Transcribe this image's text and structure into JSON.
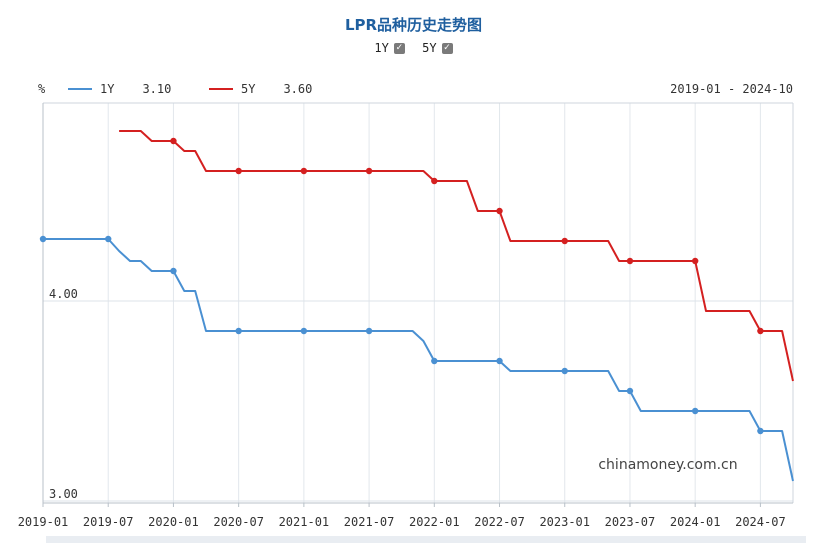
{
  "title": "LPR品种历史走势图",
  "toggles": [
    {
      "label": "1Y",
      "checked": true
    },
    {
      "label": "5Y",
      "checked": true
    }
  ],
  "unit": "%",
  "date_range": "2019-01 - 2024-10",
  "watermark": "chinamoney.com.cn",
  "legend": [
    {
      "name": "1Y",
      "value": "3.10",
      "color": "#4a90d2"
    },
    {
      "name": "5Y",
      "value": "3.60",
      "color": "#d42020"
    }
  ],
  "chart_data": {
    "type": "line",
    "ylim": [
      2.99,
      4.99
    ],
    "y_ticks": [
      {
        "value": 4.0,
        "label": "4.00"
      },
      {
        "value": 3.0,
        "label": "3.00"
      }
    ],
    "x_ticks": [
      "2019-01",
      "2019-07",
      "2020-01",
      "2020-07",
      "2021-01",
      "2021-07",
      "2022-01",
      "2022-07",
      "2023-01",
      "2023-07",
      "2024-01",
      "2024-07"
    ],
    "xlim": [
      "2019-01",
      "2024-10"
    ],
    "grid": true,
    "legend_position": "top-left",
    "series": [
      {
        "name": "1Y",
        "color": "#4a90d2",
        "points": [
          [
            "2019-01",
            4.31
          ],
          [
            "2019-07",
            4.31
          ],
          [
            "2019-08",
            4.25
          ],
          [
            "2019-09",
            4.2
          ],
          [
            "2019-10",
            4.2
          ],
          [
            "2019-11",
            4.15
          ],
          [
            "2020-01",
            4.15
          ],
          [
            "2020-02",
            4.05
          ],
          [
            "2020-03",
            4.05
          ],
          [
            "2020-04",
            3.85
          ],
          [
            "2020-07",
            3.85
          ],
          [
            "2021-01",
            3.85
          ],
          [
            "2021-07",
            3.85
          ],
          [
            "2021-11",
            3.85
          ],
          [
            "2021-12",
            3.8
          ],
          [
            "2022-01",
            3.7
          ],
          [
            "2022-07",
            3.7
          ],
          [
            "2022-08",
            3.65
          ],
          [
            "2023-01",
            3.65
          ],
          [
            "2023-05",
            3.65
          ],
          [
            "2023-06",
            3.55
          ],
          [
            "2023-07",
            3.55
          ],
          [
            "2023-08",
            3.45
          ],
          [
            "2024-01",
            3.45
          ],
          [
            "2024-06",
            3.45
          ],
          [
            "2024-07",
            3.35
          ],
          [
            "2024-09",
            3.35
          ],
          [
            "2024-10",
            3.1
          ]
        ],
        "markers": [
          "2019-01",
          "2019-07",
          "2020-01",
          "2020-07",
          "2021-01",
          "2021-07",
          "2022-01",
          "2022-07",
          "2023-01",
          "2023-07",
          "2024-01",
          "2024-07"
        ]
      },
      {
        "name": "5Y",
        "color": "#d42020",
        "points": [
          [
            "2019-08",
            4.85
          ],
          [
            "2019-10",
            4.85
          ],
          [
            "2019-11",
            4.8
          ],
          [
            "2020-01",
            4.8
          ],
          [
            "2020-02",
            4.75
          ],
          [
            "2020-03",
            4.75
          ],
          [
            "2020-04",
            4.65
          ],
          [
            "2020-07",
            4.65
          ],
          [
            "2021-01",
            4.65
          ],
          [
            "2021-07",
            4.65
          ],
          [
            "2021-12",
            4.65
          ],
          [
            "2022-01",
            4.6
          ],
          [
            "2022-04",
            4.6
          ],
          [
            "2022-05",
            4.45
          ],
          [
            "2022-07",
            4.45
          ],
          [
            "2022-08",
            4.3
          ],
          [
            "2023-01",
            4.3
          ],
          [
            "2023-05",
            4.3
          ],
          [
            "2023-06",
            4.2
          ],
          [
            "2023-07",
            4.2
          ],
          [
            "2024-01",
            4.2
          ],
          [
            "2024-02",
            3.95
          ],
          [
            "2024-06",
            3.95
          ],
          [
            "2024-07",
            3.85
          ],
          [
            "2024-09",
            3.85
          ],
          [
            "2024-10",
            3.6
          ]
        ],
        "markers": [
          "2020-01",
          "2020-07",
          "2021-01",
          "2021-07",
          "2022-01",
          "2022-07",
          "2023-01",
          "2023-07",
          "2024-01",
          "2024-07"
        ]
      }
    ]
  }
}
